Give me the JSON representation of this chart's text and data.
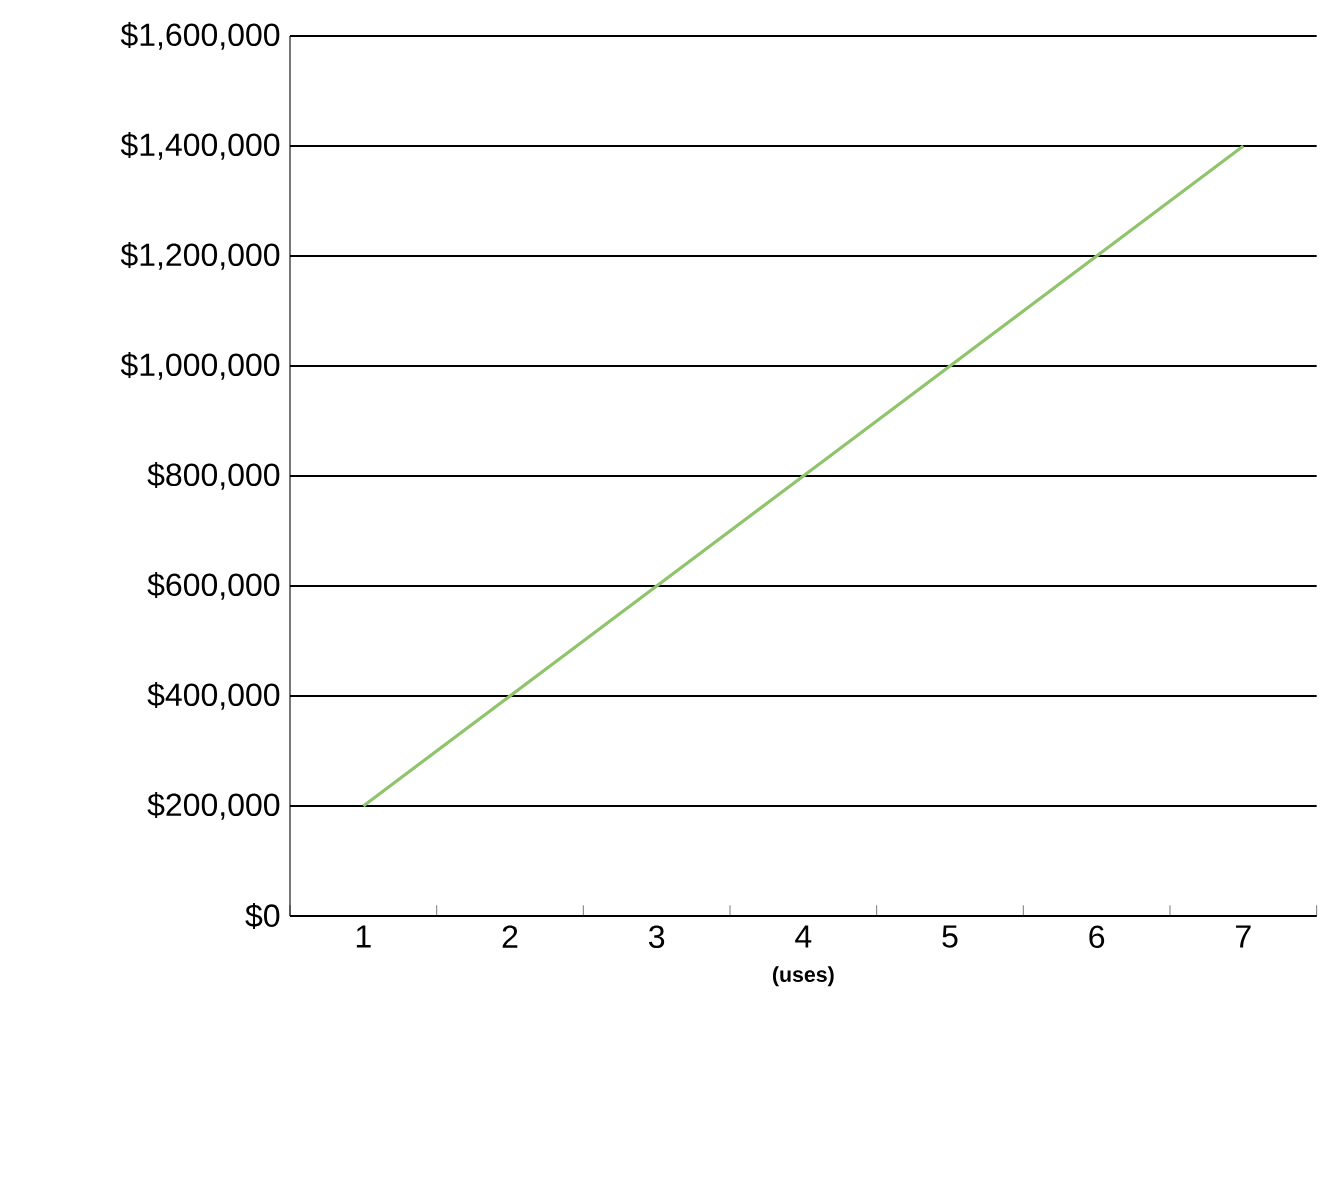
{
  "chart_data": {
    "type": "line",
    "xlabel": "**(uses)**",
    "categories": [
      "1",
      "2",
      "3",
      "4",
      "5",
      "6",
      "7"
    ],
    "series": [
      {
        "color": "#8fc46a",
        "values": [
          200000,
          400000,
          600000,
          800000,
          1000000,
          1200000,
          1400000
        ]
      }
    ],
    "ylim": [
      0,
      1600000
    ],
    "yticks": [
      {
        "value": 0,
        "label": "$0"
      },
      {
        "value": 200000,
        "label": "$200,000"
      },
      {
        "value": 400000,
        "label": "$400,000"
      },
      {
        "value": 600000,
        "label": "$600,000"
      },
      {
        "value": 800000,
        "label": "$800,000"
      },
      {
        "value": 1000000,
        "label": "$1,000,000"
      },
      {
        "value": 1200000,
        "label": "$1,200,000"
      },
      {
        "value": 1400000,
        "label": "$1,400,000"
      },
      {
        "value": 1600000,
        "label": "$1,600,000"
      }
    ],
    "grid": "y",
    "marker": "none",
    "line_style": "solid"
  }
}
